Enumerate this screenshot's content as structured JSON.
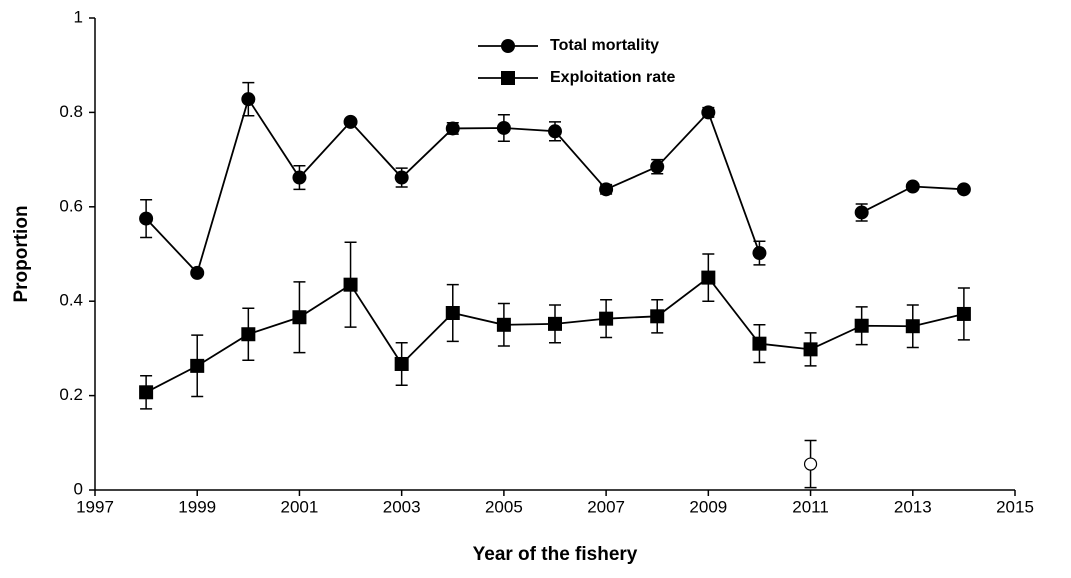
{
  "chart_data": {
    "type": "line",
    "x_label": "Year of the fishery",
    "y_label": "Proportion",
    "x": [
      1998,
      1999,
      2000,
      2001,
      2002,
      2003,
      2004,
      2005,
      2006,
      2007,
      2008,
      2009,
      2010,
      2011,
      2012,
      2013,
      2014
    ],
    "series": [
      {
        "name": "Total mortality",
        "color": "#000000",
        "marker": "circle",
        "values": [
          0.575,
          0.46,
          0.828,
          0.662,
          0.78,
          0.662,
          0.766,
          0.767,
          0.76,
          0.637,
          0.685,
          0.8,
          0.502,
          null,
          0.588,
          0.643,
          0.637
        ],
        "errors": [
          0.04,
          0.005,
          0.035,
          0.025,
          0.005,
          0.02,
          0.012,
          0.028,
          0.02,
          0.01,
          0.015,
          0.01,
          0.025,
          null,
          0.018,
          0.005,
          0.005
        ]
      },
      {
        "name": "Exploitation rate",
        "color": "#000000",
        "marker": "square",
        "values": [
          0.207,
          0.263,
          0.33,
          0.366,
          0.435,
          0.267,
          0.375,
          0.35,
          0.352,
          0.363,
          0.368,
          0.45,
          0.31,
          0.298,
          0.348,
          0.347,
          0.373
        ],
        "errors": [
          0.035,
          0.065,
          0.055,
          0.075,
          0.09,
          0.045,
          0.06,
          0.045,
          0.04,
          0.04,
          0.035,
          0.05,
          0.04,
          0.035,
          0.04,
          0.045,
          0.055
        ]
      }
    ],
    "extra_points": {
      "marker": "open-circle",
      "color": "#000000",
      "x": [
        2011
      ],
      "values": [
        0.055
      ],
      "errors": [
        0.05
      ]
    },
    "xlim": [
      1997,
      2015
    ],
    "xticks": [
      1997,
      1999,
      2001,
      2003,
      2005,
      2007,
      2009,
      2011,
      2013,
      2015
    ],
    "ylim": [
      0,
      1
    ],
    "yticks": [
      0,
      0.2,
      0.4,
      0.6,
      0.8,
      1
    ],
    "legend": "top"
  }
}
